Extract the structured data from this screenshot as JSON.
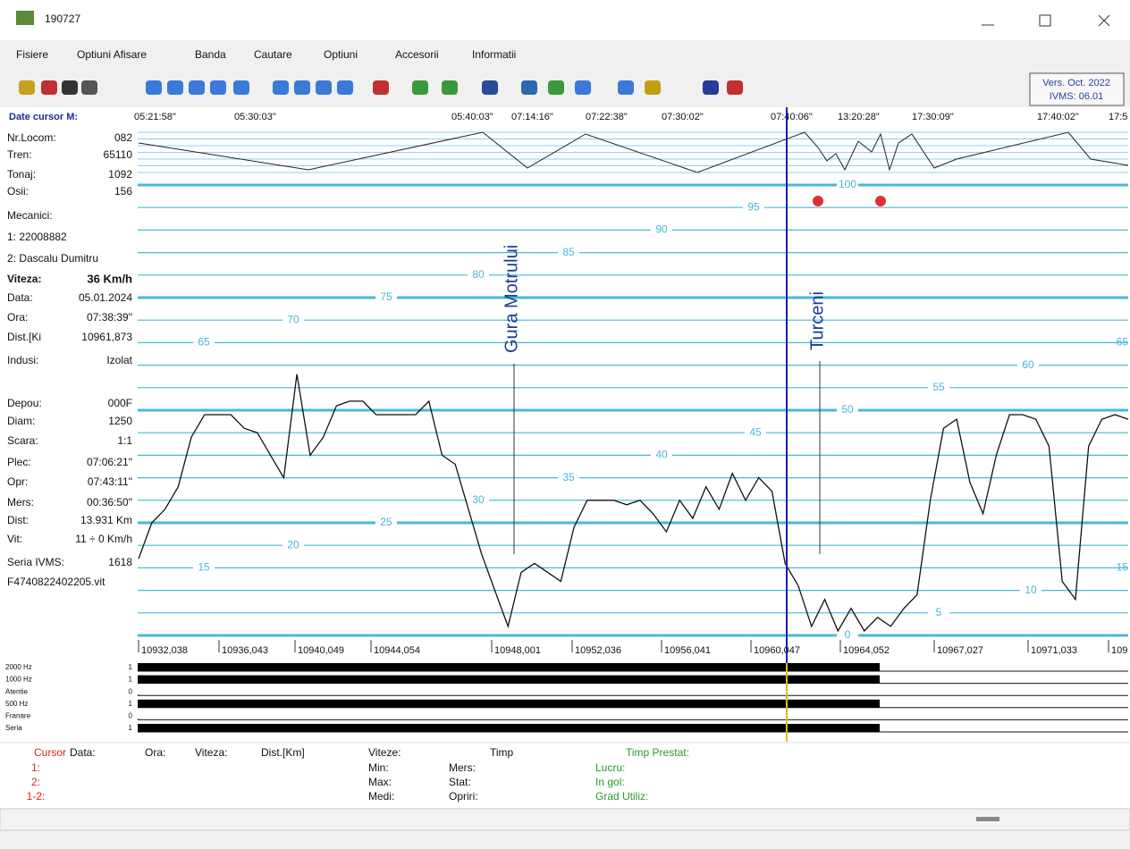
{
  "window": {
    "title": "190727",
    "version": [
      "Vers. Oct. 2022",
      "IVMS: 06.01"
    ]
  },
  "menu": [
    "Fisiere",
    "Optiuni Afisare",
    "Banda",
    "Cautare",
    "Optiuni",
    "Accesorii",
    "Informatii"
  ],
  "left_panel": {
    "cursor_label": "Date cursor M:",
    "rows": [
      [
        "Nr.Locom:",
        "082"
      ],
      [
        "Tren:",
        "65110"
      ],
      [
        "Tonaj:",
        "1092"
      ],
      [
        "Osii:",
        "156"
      ],
      [
        "Mecanici:",
        ""
      ],
      [
        "1: 22008882",
        ""
      ],
      [
        "2: Dascalu Dumitru",
        ""
      ],
      [
        "Viteza:",
        "36 Km/h"
      ],
      [
        "Data:",
        "05.01.2024"
      ],
      [
        "Ora:",
        "07:38:39\""
      ],
      [
        "Dist.[Ki",
        "10961,873"
      ],
      [
        "Indusi:",
        "Izolat"
      ],
      [
        "Depou:",
        "000F"
      ],
      [
        "Diam:",
        "1250"
      ],
      [
        "Scara:",
        "1:1"
      ],
      [
        "Plec:",
        "07:06:21\""
      ],
      [
        "Opr:",
        "07:43:11\""
      ],
      [
        "Mers:",
        "00:36:50\""
      ],
      [
        "Dist:",
        "13.931 Km"
      ],
      [
        "Vit:",
        "11 ÷ 0 Km/h"
      ],
      [
        "Seria IVMS:",
        "1618"
      ],
      [
        "F4740822402205.vit",
        ""
      ]
    ]
  },
  "chart_data": {
    "type": "line",
    "time_labels": [
      "05:21:58\"",
      "05:30:03\"",
      "05:40:03\"",
      "07:14:16\"",
      "07:22:38\"",
      "07:30:02\"",
      "07:40:06\"",
      "13:20:28\"",
      "17:30:09\"",
      "17:40:02\"",
      "17:5"
    ],
    "distance_labels": [
      "10932,038",
      "10936,043",
      "10940,049",
      "10944,054",
      "10948,001",
      "10952,036",
      "10956,041",
      "10960,047",
      "10964,052",
      "10967,027",
      "10971,033",
      "109"
    ],
    "ylim": [
      0,
      100
    ],
    "yticks": [
      0,
      5,
      10,
      15,
      20,
      25,
      30,
      35,
      40,
      45,
      50,
      55,
      60,
      65,
      70,
      75,
      80,
      85,
      90,
      95,
      100
    ],
    "color": "#111111",
    "values": [
      17,
      25,
      28,
      33,
      44,
      49,
      49,
      49,
      46,
      45,
      40,
      35,
      58,
      40,
      44,
      51,
      52,
      52,
      49,
      49,
      49,
      49,
      52,
      40,
      38,
      28,
      18,
      10,
      2,
      14,
      16,
      14,
      12,
      24,
      30,
      30,
      30,
      29,
      30,
      27,
      23,
      30,
      26,
      33,
      28,
      36,
      30,
      35,
      32,
      16,
      11,
      2,
      8,
      1,
      6,
      1,
      4,
      2,
      6,
      9,
      30,
      46,
      48,
      34,
      27,
      40,
      49,
      49,
      48,
      42,
      12,
      8,
      42,
      48,
      49,
      48
    ],
    "stations": [
      "Gura Motrului",
      "Turceni"
    ]
  },
  "channels": {
    "names": [
      "2000 Hz",
      "1000 Hz",
      "Atentie",
      "500 Hz",
      "Franare",
      "Seria"
    ],
    "values": [
      1,
      1,
      0,
      1,
      0,
      1
    ]
  },
  "bottom_table": {
    "headers": [
      "Cursor",
      "Data:",
      "Ora:",
      "Viteza:",
      "Dist.[Km]",
      "Viteze:",
      "Timp",
      "Timp Prestat:"
    ],
    "cursor_rows": [
      "1:",
      "2:",
      "1-2:"
    ],
    "speed_rows": [
      "Min:",
      "Max:",
      "Medi:"
    ],
    "time_rows": [
      "Mers:",
      "Stat:",
      "Opriri:"
    ],
    "work_rows": [
      "Lucru:",
      "In gol:",
      "Grad Utiliz:"
    ]
  }
}
